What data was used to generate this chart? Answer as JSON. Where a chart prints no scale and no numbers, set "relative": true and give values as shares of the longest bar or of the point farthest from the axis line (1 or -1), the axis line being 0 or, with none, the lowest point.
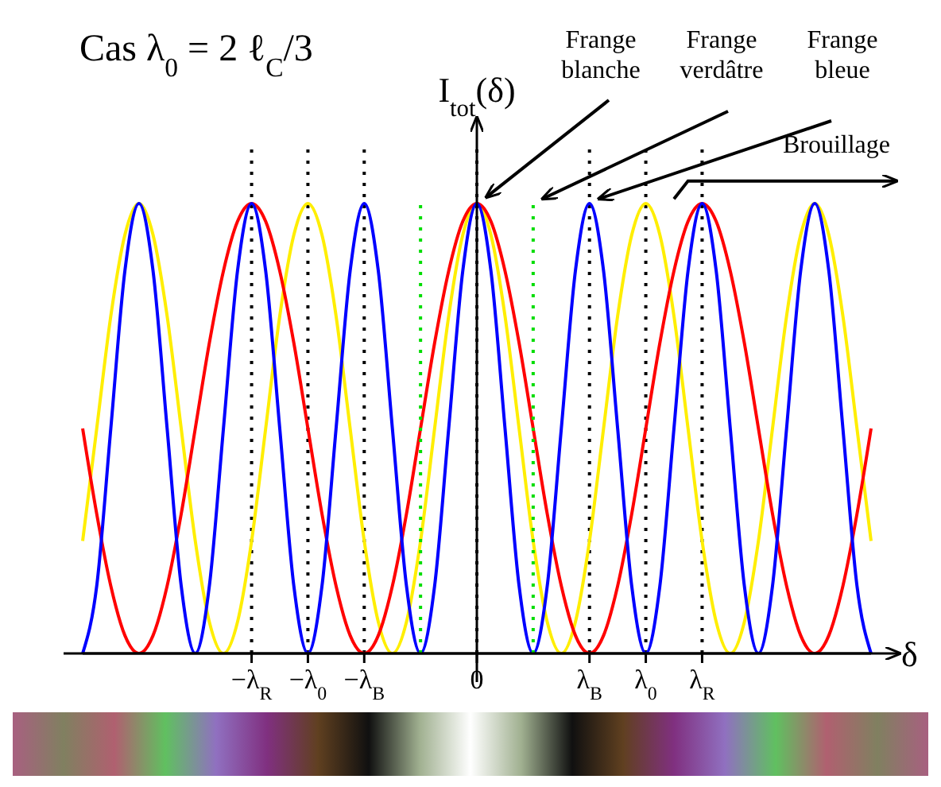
{
  "chart_data": {
    "type": "line",
    "title": "Cas λ$_{0}$ = 2 ℓ$_{C}$/3",
    "xlabel": "δ",
    "ylabel": "I$_{tot}$(δ)",
    "relative": true,
    "grid": "x",
    "legend": false,
    "marker": "none",
    "line_style": "solid",
    "categories": [
      null,
      null,
      null,
      null,
      null,
      null,
      null,
      null,
      null,
      null,
      null,
      null,
      "−λ$_{R}$",
      null,
      null,
      null,
      "−λ$_{0}$",
      null,
      null,
      null,
      "−λ$_{B}$",
      null,
      null,
      null,
      null,
      null,
      null,
      null,
      "0",
      null,
      null,
      null,
      null,
      null,
      null,
      null,
      "λ$_{B}$",
      null,
      null,
      null,
      "λ$_{0}$",
      null,
      null,
      null,
      "λ$_{R}$",
      null,
      null,
      null,
      null,
      null,
      null,
      null,
      null,
      null,
      null,
      null,
      null
    ],
    "series": [
      {
        "color": "#ffee00",
        "values": [
          0.25,
          0.5,
          0.75,
          0.93,
          1,
          0.93,
          0.75,
          0.5,
          0.25,
          0.07,
          0,
          0.07,
          0.25,
          0.5,
          0.75,
          0.93,
          1,
          0.93,
          0.75,
          0.5,
          0.25,
          0.07,
          0,
          0.07,
          0.25,
          0.5,
          0.75,
          0.93,
          1,
          0.93,
          0.75,
          0.5,
          0.25,
          0.07,
          0,
          0.07,
          0.25,
          0.5,
          0.75,
          0.93,
          1,
          0.93,
          0.75,
          0.5,
          0.25,
          0.07,
          0,
          0.07,
          0.25,
          0.5,
          0.75,
          0.93,
          1,
          0.93,
          0.75,
          0.5,
          0.25
        ]
      },
      {
        "color": "#ff0000",
        "values": [
          0.5,
          0.31,
          0.15,
          0.04,
          0,
          0.04,
          0.15,
          0.31,
          0.5,
          0.69,
          0.85,
          0.96,
          1,
          0.96,
          0.85,
          0.69,
          0.5,
          0.31,
          0.15,
          0.04,
          0,
          0.04,
          0.15,
          0.31,
          0.5,
          0.69,
          0.85,
          0.96,
          1,
          0.96,
          0.85,
          0.69,
          0.5,
          0.31,
          0.15,
          0.04,
          0,
          0.04,
          0.15,
          0.31,
          0.5,
          0.69,
          0.85,
          0.96,
          1,
          0.96,
          0.85,
          0.69,
          0.5,
          0.31,
          0.15,
          0.04,
          0,
          0.04,
          0.15,
          0.31,
          0.5
        ]
      },
      {
        "color": "#0000ff",
        "values": [
          0,
          0.15,
          0.5,
          0.85,
          1,
          0.85,
          0.5,
          0.15,
          0,
          0.15,
          0.5,
          0.85,
          1,
          0.85,
          0.5,
          0.15,
          0,
          0.15,
          0.5,
          0.85,
          1,
          0.85,
          0.5,
          0.15,
          0,
          0.15,
          0.5,
          0.85,
          1,
          0.85,
          0.5,
          0.15,
          0,
          0.15,
          0.5,
          0.85,
          1,
          0.85,
          0.5,
          0.15,
          0,
          0.15,
          0.5,
          0.85,
          1,
          0.85,
          0.5,
          0.15,
          0,
          0.15,
          0.5,
          0.85,
          1,
          0.85,
          0.5,
          0.15,
          0
        ]
      }
    ],
    "annotations": [
      {
        "text": "Frange blanche",
        "x": "0",
        "y": 1
      },
      "Frange verdâtre",
      "Frange bleue",
      "Brouillage"
    ]
  }
}
